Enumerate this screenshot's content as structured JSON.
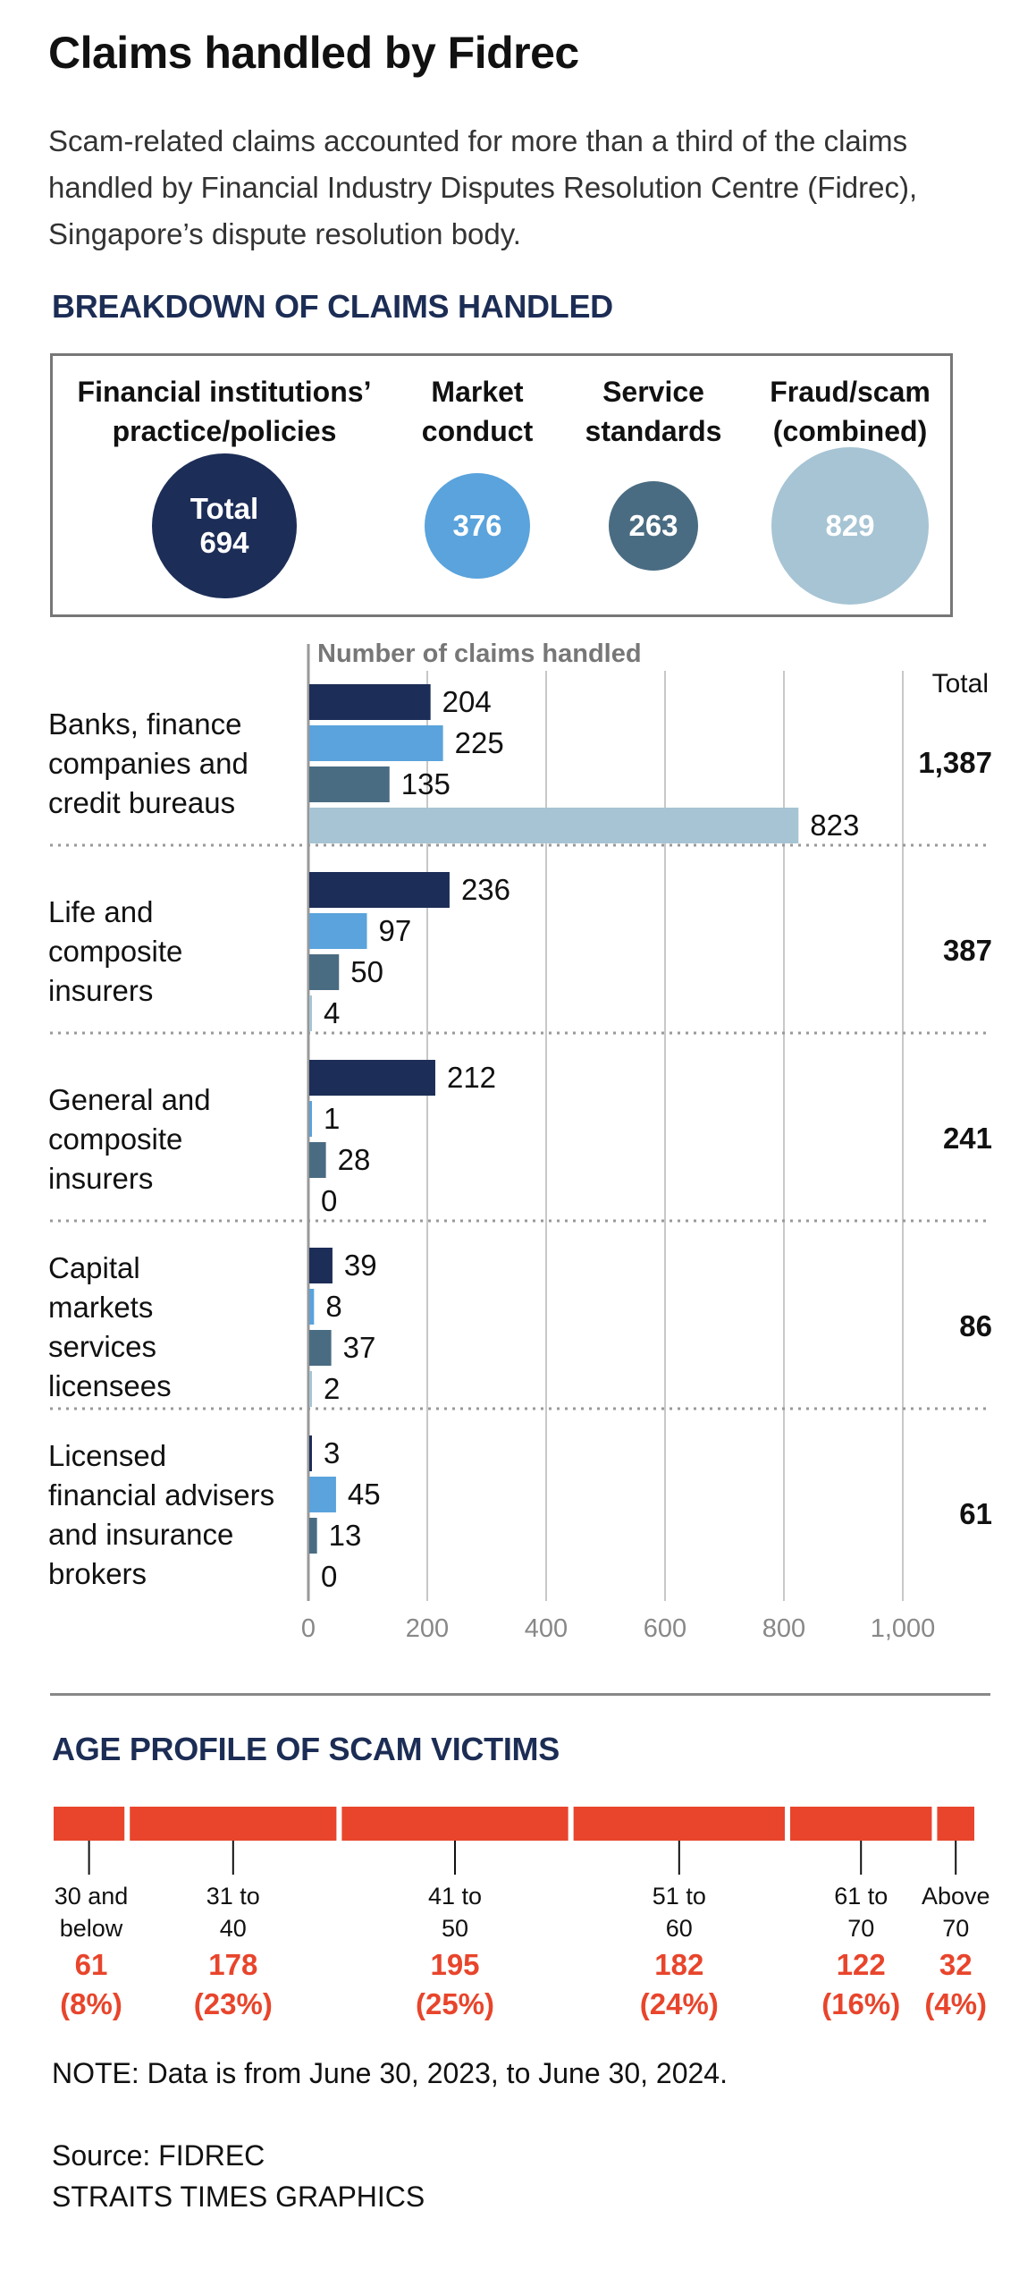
{
  "title": "Claims handled by Fidrec",
  "subtitle": "Scam-related claims accounted for more than a third of the claims handled by Financial Industry Disputes Resolution Centre (Fidrec), Singapore’s dispute resolution body.",
  "breakdown": {
    "heading": "BREAKDOWN OF CLAIMS HANDLED",
    "categories": [
      {
        "name": "Financial institutions’\npractice/policies",
        "bubble_prefix": "Total",
        "value": "694",
        "color": "#1c2d57"
      },
      {
        "name": "Market\nconduct",
        "bubble_prefix": "",
        "value": "376",
        "color": "#5aa3dc"
      },
      {
        "name": "Service\nstandards",
        "bubble_prefix": "",
        "value": "263",
        "color": "#4a6c82"
      },
      {
        "name": "Fraud/scam\n(combined)",
        "bubble_prefix": "",
        "value": "829",
        "color": "#a6c4d4"
      }
    ]
  },
  "chart_data": {
    "type": "bar",
    "orientation": "horizontal",
    "title": "Number of claims handled",
    "total_header": "Total",
    "xlim": [
      0,
      1000
    ],
    "xticks": [
      0,
      200,
      400,
      600,
      800,
      1000
    ],
    "xtick_labels": [
      "0",
      "200",
      "400",
      "600",
      "800",
      "1,000"
    ],
    "series_names": [
      "Financial institutions’ practice/policies",
      "Market conduct",
      "Service standards",
      "Fraud/scam (combined)"
    ],
    "series_colors": [
      "#1c2d57",
      "#5aa3dc",
      "#4a6c82",
      "#a6c4d4"
    ],
    "groups": [
      {
        "label": "Banks, finance\ncompanies and\ncredit bureaus",
        "values": [
          204,
          225,
          135,
          823
        ],
        "total": "1,387"
      },
      {
        "label": "Life and\ncomposite\ninsurers",
        "values": [
          236,
          97,
          50,
          4
        ],
        "total": "387"
      },
      {
        "label": "General and\ncomposite\ninsurers",
        "values": [
          212,
          1,
          28,
          0
        ],
        "total": "241"
      },
      {
        "label": "Capital\nmarkets\nservices\nlicensees",
        "values": [
          39,
          8,
          37,
          2
        ],
        "total": "86"
      },
      {
        "label": "Licensed\nfinancial advisers\nand insurance\nbrokers",
        "values": [
          3,
          45,
          13,
          0
        ],
        "total": "61"
      }
    ]
  },
  "age_profile": {
    "heading": "AGE PROFILE OF SCAM VICTIMS",
    "color": "#e8452c",
    "groups": [
      {
        "label": "30 and\nbelow",
        "count": 61,
        "pct": 8,
        "value": "61\n(8%)"
      },
      {
        "label": "31 to\n40",
        "count": 178,
        "pct": 23,
        "value": "178\n(23%)"
      },
      {
        "label": "41 to\n50",
        "count": 195,
        "pct": 25,
        "value": "195\n(25%)"
      },
      {
        "label": "51 to\n60",
        "count": 182,
        "pct": 24,
        "value": "182\n(24%)"
      },
      {
        "label": "61 to\n70",
        "count": 122,
        "pct": 16,
        "value": "122\n(16%)"
      },
      {
        "label": "Above\n70",
        "count": 32,
        "pct": 4,
        "value": "32\n(4%)"
      }
    ]
  },
  "note": "NOTE: Data is from June 30, 2023, to June 30, 2024.",
  "source": "Source: FIDREC",
  "credit": "STRAITS TIMES GRAPHICS"
}
